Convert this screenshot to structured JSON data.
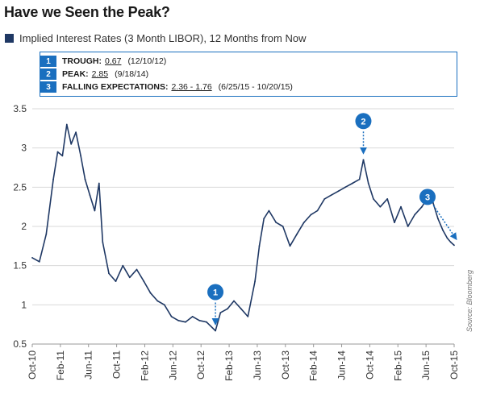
{
  "header": {
    "title": "Have we Seen the Peak?",
    "legend_label": "Implied Interest Rates (3 Month LIBOR), 12 Months from Now"
  },
  "annotations": [
    {
      "num": "1",
      "label": "TROUGH:",
      "value": "0.67",
      "detail": "(12/10/12)"
    },
    {
      "num": "2",
      "label": "PEAK:",
      "value": "2.85",
      "detail": "(9/18/14)"
    },
    {
      "num": "3",
      "label": "FALLING EXPECTATIONS:",
      "value": "2.36 - 1.76",
      "detail": "(6/25/15 - 10/20/15)"
    }
  ],
  "source": "Source: Bloomberg",
  "colors": {
    "line": "#1f3864",
    "accent": "#1a6fbf",
    "grid": "#d9d9d9"
  },
  "chart_data": {
    "type": "line",
    "title": "Have we Seen the Peak?",
    "xlabel": "",
    "ylabel": "",
    "ylim": [
      0.5,
      3.5
    ],
    "yticks": [
      "3.5",
      "3",
      "2.5",
      "2",
      "1.5",
      "1",
      "0.5"
    ],
    "xticks": [
      "Oct-10",
      "Feb-11",
      "Jun-11",
      "Oct-11",
      "Feb-12",
      "Jun-12",
      "Oct-12",
      "Feb-13",
      "Jun-13",
      "Oct-13",
      "Feb-14",
      "Jun-14",
      "Oct-14",
      "Feb-15",
      "Jun-15",
      "Oct-15"
    ],
    "grid": "horizontal",
    "series": [
      {
        "name": "Implied Interest Rates (3 Month LIBOR), 12 Months from Now",
        "x": [
          "2010-10-01",
          "2010-11-01",
          "2010-12-01",
          "2011-01-01",
          "2011-01-20",
          "2011-02-10",
          "2011-03-01",
          "2011-03-20",
          "2011-04-10",
          "2011-05-01",
          "2011-05-20",
          "2011-06-10",
          "2011-07-01",
          "2011-07-20",
          "2011-08-05",
          "2011-09-01",
          "2011-10-01",
          "2011-11-01",
          "2011-12-01",
          "2012-01-01",
          "2012-02-01",
          "2012-03-01",
          "2012-04-01",
          "2012-05-01",
          "2012-06-01",
          "2012-07-01",
          "2012-08-01",
          "2012-09-01",
          "2012-10-01",
          "2012-11-01",
          "2012-12-10",
          "2013-01-01",
          "2013-02-01",
          "2013-03-01",
          "2013-04-01",
          "2013-05-01",
          "2013-06-01",
          "2013-06-20",
          "2013-07-10",
          "2013-08-01",
          "2013-09-01",
          "2013-10-01",
          "2013-11-01",
          "2013-12-01",
          "2014-01-01",
          "2014-02-01",
          "2014-03-01",
          "2014-04-01",
          "2014-05-01",
          "2014-06-01",
          "2014-07-01",
          "2014-08-01",
          "2014-09-01",
          "2014-09-18",
          "2014-10-10",
          "2014-11-01",
          "2014-12-01",
          "2015-01-01",
          "2015-02-01",
          "2015-03-01",
          "2015-04-01",
          "2015-05-01",
          "2015-06-01",
          "2015-06-25",
          "2015-07-20",
          "2015-08-10",
          "2015-09-01",
          "2015-09-20",
          "2015-10-05",
          "2015-10-20"
        ],
        "values": [
          1.6,
          1.55,
          1.9,
          2.6,
          2.95,
          2.9,
          3.3,
          3.05,
          3.2,
          2.9,
          2.6,
          2.4,
          2.2,
          2.55,
          1.8,
          1.4,
          1.3,
          1.5,
          1.35,
          1.45,
          1.3,
          1.15,
          1.05,
          1.0,
          0.85,
          0.8,
          0.78,
          0.85,
          0.8,
          0.78,
          0.67,
          0.9,
          0.95,
          1.05,
          0.95,
          0.85,
          1.3,
          1.75,
          2.1,
          2.2,
          2.05,
          2.0,
          1.75,
          1.9,
          2.05,
          2.15,
          2.2,
          2.35,
          2.4,
          2.45,
          2.5,
          2.55,
          2.6,
          2.85,
          2.55,
          2.35,
          2.25,
          2.35,
          2.05,
          2.25,
          2.0,
          2.15,
          2.25,
          2.36,
          2.3,
          2.1,
          1.95,
          1.85,
          1.8,
          1.76
        ]
      }
    ],
    "markers": [
      {
        "label": "1",
        "x": "2012-12-10",
        "y": 0.67
      },
      {
        "label": "2",
        "x": "2014-09-18",
        "y": 2.85
      },
      {
        "label": "3",
        "x": "2015-10-20",
        "y": 1.76
      }
    ]
  }
}
